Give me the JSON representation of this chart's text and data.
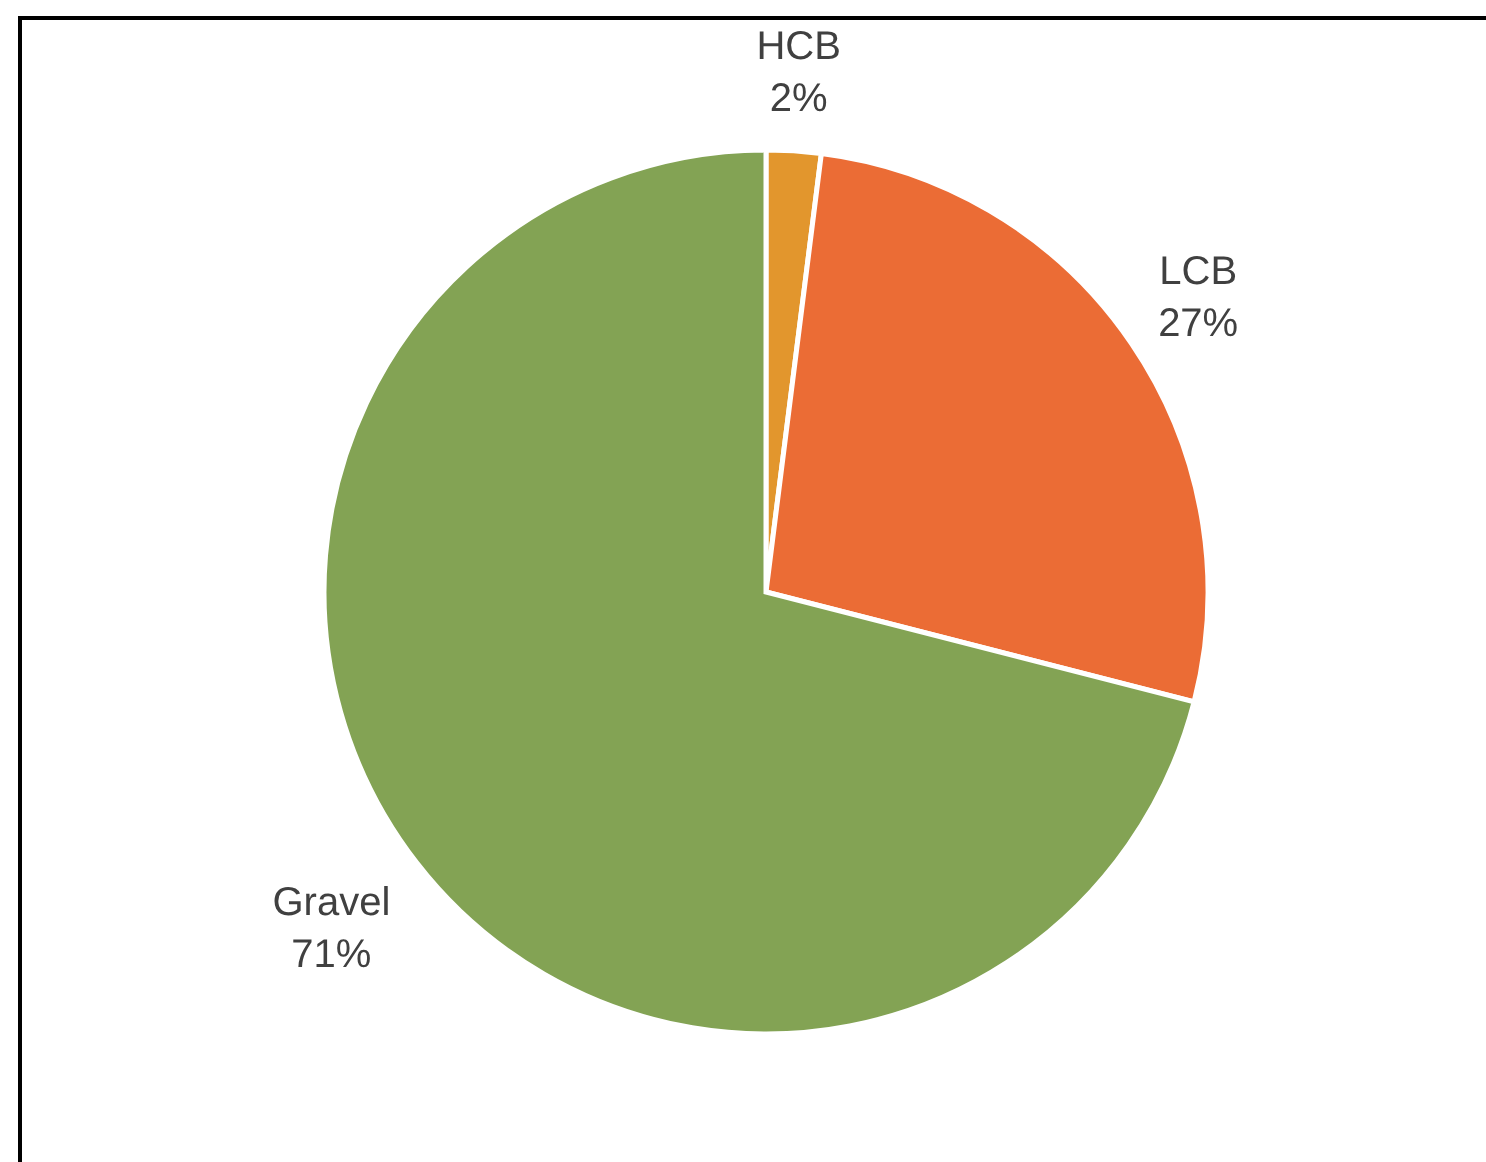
{
  "chart_data": {
    "type": "pie",
    "categories": [
      "HCB",
      "LCB",
      "Gravel"
    ],
    "values": [
      2,
      27,
      71
    ],
    "colors": [
      "#e2962d",
      "#eb6c35",
      "#83a354"
    ],
    "value_labels": [
      "2%",
      "27%",
      "71%"
    ]
  }
}
